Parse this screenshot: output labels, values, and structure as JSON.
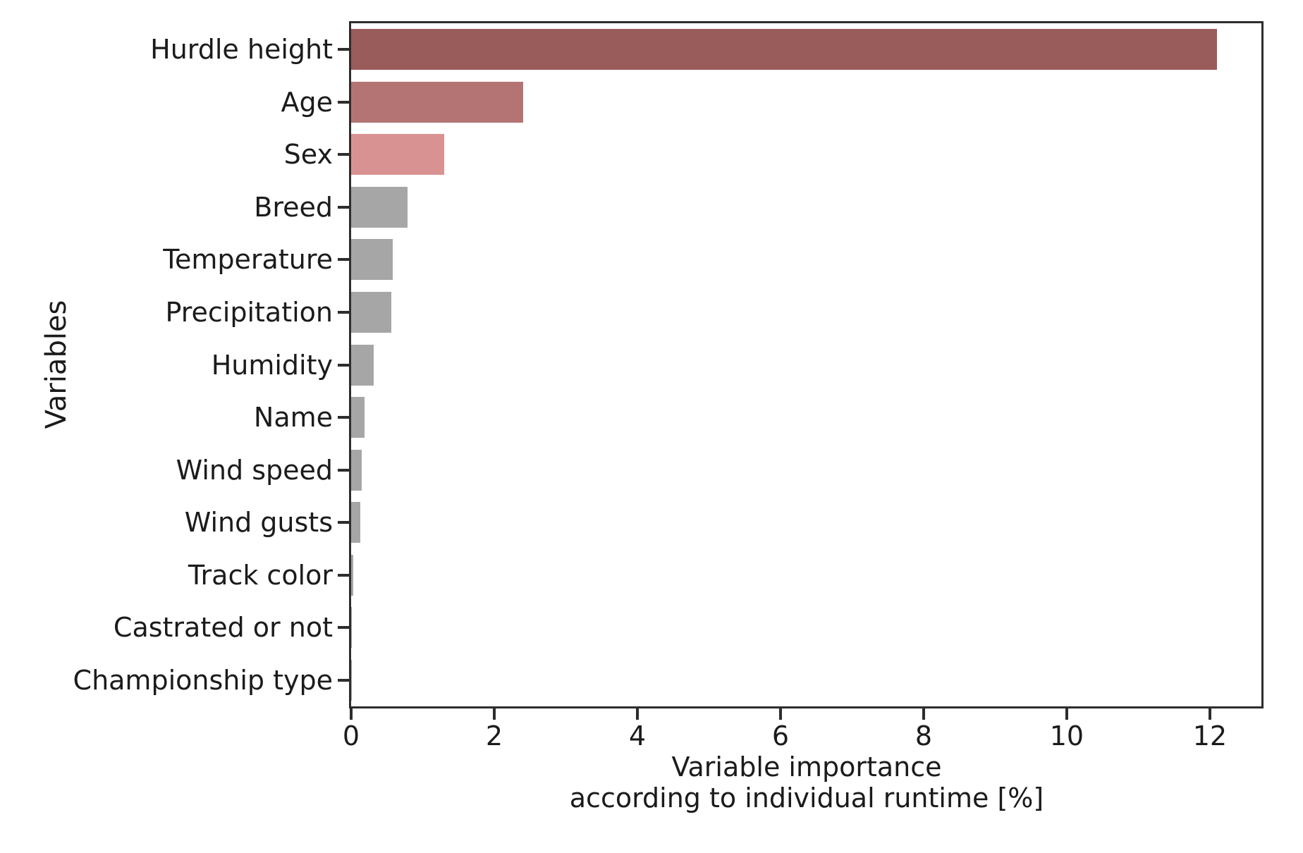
{
  "figure": {
    "background_color": "#ffffff",
    "axis_color": "#2d2d2d",
    "text_color": "#1b1b1b"
  },
  "chart_data": {
    "type": "bar",
    "orientation": "horizontal",
    "title": "",
    "categories": [
      "Hurdle height",
      "Age",
      "Sex",
      "Breed",
      "Temperature",
      "Precipitation",
      "Humidity",
      "Name",
      "Wind speed",
      "Wind gusts",
      "Track color",
      "Castrated or not",
      "Championship type"
    ],
    "values": [
      12.1,
      2.4,
      1.3,
      0.79,
      0.58,
      0.56,
      0.32,
      0.19,
      0.15,
      0.13,
      0.03,
      0.01,
      0.005
    ],
    "bar_colors": [
      "#9a5b5b",
      "#b47474",
      "#d99292",
      "#a6a6a6",
      "#a6a6a6",
      "#a6a6a6",
      "#a6a6a6",
      "#a6a6a6",
      "#a6a6a6",
      "#a6a6a6",
      "#a6a6a6",
      "#a6a6a6",
      "#a6a6a6"
    ],
    "x_ticks": [
      "0",
      "2",
      "4",
      "6",
      "8",
      "10",
      "12"
    ],
    "x_tick_values": [
      0,
      2,
      4,
      6,
      8,
      10,
      12
    ],
    "xlim": [
      0,
      12.72
    ],
    "xlabel_line1": "Variable importance",
    "xlabel_line2": "according to individual runtime [%]",
    "ylabel": "Variables",
    "grid": false,
    "legend": "none"
  }
}
